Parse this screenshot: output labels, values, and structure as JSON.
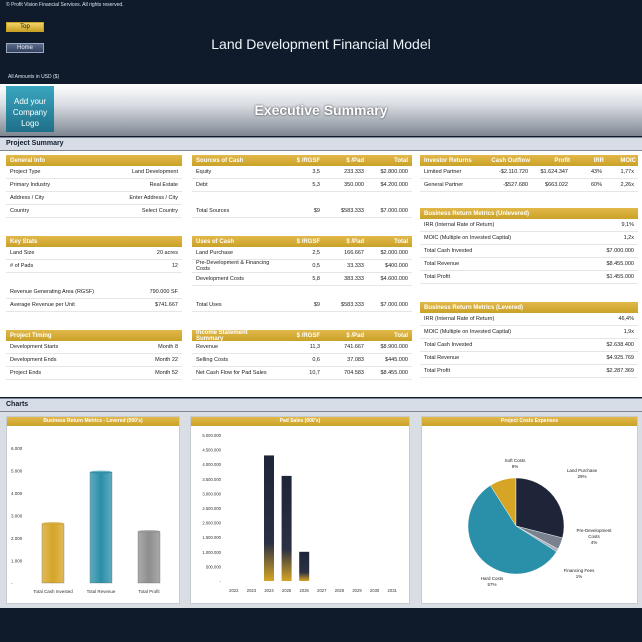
{
  "header": {
    "copyright": "© Profit Vision Financial Services. All rights reserved.",
    "nav_top": "Top",
    "nav_home": "Home",
    "app_title": "Land Development Financial Model",
    "units": "All Amounts in  USD ($)",
    "logo_text": "Add your Company Logo",
    "exec_title": "Executive Summary"
  },
  "sections": {
    "project_summary": "Project Summary",
    "charts": "Charts"
  },
  "general_info": {
    "title": "General Info",
    "rows": [
      {
        "label": "Project Type",
        "value": "Land Development"
      },
      {
        "label": "Primary Industry",
        "value": "Real Estate"
      },
      {
        "label": "Address / City",
        "value": "Enter Address / City"
      },
      {
        "label": "Country",
        "value": "Select Country"
      }
    ]
  },
  "key_stats": {
    "title": "Key Stats",
    "rows": [
      {
        "label": "Land Size",
        "value": "20 acres"
      },
      {
        "label": "# of Pads",
        "value": "12"
      }
    ],
    "rows2": [
      {
        "label": "Revenue Generating Area (RGSF)",
        "value": "790.000 SF"
      },
      {
        "label": "Average Revenue per Unit",
        "value": "$741.667"
      }
    ]
  },
  "project_timing": {
    "title": "Project Timing",
    "rows": [
      {
        "label": "Development Starts",
        "value": "Month 8"
      },
      {
        "label": "Development Ends",
        "value": "Month 22"
      },
      {
        "label": "Project Ends",
        "value": "Month 52"
      }
    ]
  },
  "sources_of_cash": {
    "title": "Sources of Cash",
    "cols": [
      "$ /RGSF",
      "$ /Pad",
      "Total"
    ],
    "rows": [
      {
        "label": "Equity",
        "c1": "3,5",
        "c2": "233.333",
        "c3": "$2.800.000"
      },
      {
        "label": "Debt",
        "c1": "5,3",
        "c2": "350.000",
        "c3": "$4.200.000"
      }
    ],
    "total": {
      "label": "Total Sources",
      "c1": "$9",
      "c2": "$583.333",
      "c3": "$7.000.000"
    }
  },
  "uses_of_cash": {
    "title": "Uses of Cash",
    "cols": [
      "$ /RGSF",
      "$ /Pad",
      "Total"
    ],
    "rows": [
      {
        "label": "Land Purchase",
        "c1": "2,5",
        "c2": "166.667",
        "c3": "$2.000.000"
      },
      {
        "label": "Pre-Development & Financing Costs",
        "c1": "0,5",
        "c2": "33.333",
        "c3": "$400.000"
      },
      {
        "label": "Development Costs",
        "c1": "5,8",
        "c2": "383.333",
        "c3": "$4.600.000"
      }
    ],
    "total": {
      "label": "Total Uses",
      "c1": "$9",
      "c2": "$583.333",
      "c3": "$7.000.000"
    }
  },
  "income_statement": {
    "title": "Income Statement Summary",
    "cols": [
      "$ /RGSF",
      "$ /Pad",
      "Total"
    ],
    "rows": [
      {
        "label": "Revenue",
        "c1": "11,3",
        "c2": "741.667",
        "c3": "$8.900.000"
      },
      {
        "label": "Selling Costs",
        "c1": "0,6",
        "c2": "37.083",
        "c3": "$445.000"
      },
      {
        "label": "Net Cash Flow for Pad Sales",
        "c1": "10,7",
        "c2": "704.583",
        "c3": "$8.455.000"
      }
    ]
  },
  "investor_returns": {
    "title": "Investor Returns",
    "cols": [
      "Cash Outflow",
      "Profit",
      "IRR",
      "MOIC"
    ],
    "rows": [
      {
        "label": "Limited Partner",
        "c1": "-$2.110.720",
        "c2": "$1.624.347",
        "c3": "43%",
        "c4": "1,77x"
      },
      {
        "label": "General Partner",
        "c1": "-$527.680",
        "c2": "$663.022",
        "c3": "60%",
        "c4": "2,26x"
      }
    ]
  },
  "unlevered": {
    "title": "Business Return Metrics (Unlevered)",
    "rows": [
      {
        "label": "IRR (Internal Rate of Return)",
        "value": "9,1%"
      },
      {
        "label": "MOIC (Multiple on Invested Capital)",
        "value": "1,2x"
      },
      {
        "label": "Total Cash Invested",
        "value": "$7.000.000"
      },
      {
        "label": "Total Revenue",
        "value": "$8.455.000"
      },
      {
        "label": "Total Profit",
        "value": "$1.455.000"
      }
    ]
  },
  "levered": {
    "title": "Business Return Metrics (Levered)",
    "rows": [
      {
        "label": "IRR (Internal Rate of Return)",
        "value": "46,4%"
      },
      {
        "label": "MOIC (Multiple on Invested Capital)",
        "value": "1,9x"
      },
      {
        "label": "Total Cash Invested",
        "value": "$2.638.400"
      },
      {
        "label": "Total Revenue",
        "value": "$4.925.769"
      },
      {
        "label": "Total Profit",
        "value": "$2.287.369"
      }
    ]
  },
  "chart_data": [
    {
      "type": "bar",
      "title": "Business Return Metrics - Levered (000's)",
      "categories": [
        "Total Cash Invested",
        "Total Revenue",
        "Total Profit"
      ],
      "values": [
        2638,
        4926,
        2287
      ],
      "ylim": [
        0,
        6000
      ],
      "yticks": [
        "6.000",
        "5.000",
        "4.000",
        "3.000",
        "2.000",
        "1.000",
        "-"
      ],
      "colors": [
        "#d6a526",
        "#2a8fa8",
        "#8e8e8e"
      ]
    },
    {
      "type": "bar",
      "title": "Pad Sales (000's)",
      "categories": [
        "2022",
        "2023",
        "2024",
        "2025",
        "2026",
        "2027",
        "2028",
        "2029",
        "2030",
        "2031"
      ],
      "values": [
        0,
        0,
        4300,
        3600,
        1000,
        0,
        0,
        0,
        0,
        0
      ],
      "ylim": [
        0,
        5000
      ],
      "yticks": [
        "5.000.000",
        "4.500.000",
        "4.000.000",
        "3.500.000",
        "3.000.000",
        "2.500.000",
        "2.000.000",
        "1.500.000",
        "1.000.000",
        "500.000",
        "-"
      ],
      "color": "#1e2538"
    },
    {
      "type": "pie",
      "title": "Project Costs Expenses",
      "slices": [
        {
          "name": "Soft Costs",
          "pct": "9%",
          "value": 9,
          "color": "#d6a526"
        },
        {
          "name": "Land Purchase",
          "pct": "29%",
          "value": 29,
          "color": "#1e2538"
        },
        {
          "name": "Pre-Development Costs",
          "pct": "4%",
          "value": 4,
          "color": "#7a8290"
        },
        {
          "name": "Financing Fees",
          "pct": "1%",
          "value": 1,
          "color": "#aab0ba"
        },
        {
          "name": "Hard Costs",
          "pct": "57%",
          "value": 57,
          "color": "#2a8fa8"
        }
      ]
    }
  ]
}
